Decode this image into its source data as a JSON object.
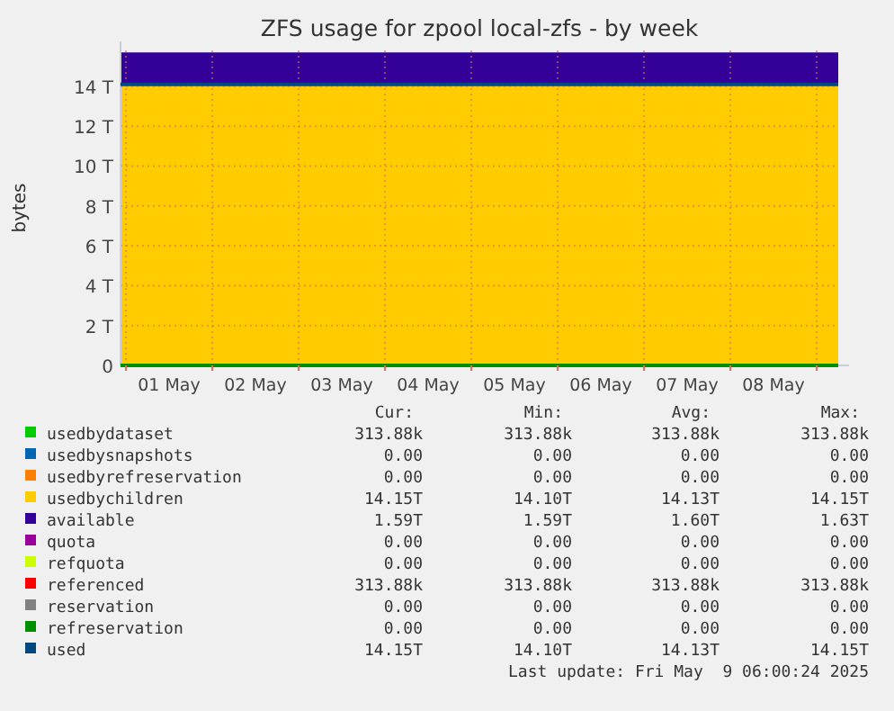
{
  "chart_data": {
    "type": "area",
    "title": "ZFS usage for zpool local-zfs - by week",
    "ylabel": "bytes",
    "stacked": true,
    "grid": true,
    "legend": "bottom",
    "x": [
      "2025-04-30T22:30",
      "2025-05-04T12:00",
      "2025-05-09T06:00"
    ],
    "xlim": [
      "2025-04-30T22:30",
      "2025-05-09T06:00"
    ],
    "xticks": [
      {
        "value": "2025-05-01T00:00",
        "label": null
      },
      {
        "value": "2025-05-01T12:00",
        "label": "01 May"
      },
      {
        "value": "2025-05-02T00:00",
        "label": null
      },
      {
        "value": "2025-05-02T12:00",
        "label": "02 May"
      },
      {
        "value": "2025-05-03T00:00",
        "label": null
      },
      {
        "value": "2025-05-03T12:00",
        "label": "03 May"
      },
      {
        "value": "2025-05-04T00:00",
        "label": null
      },
      {
        "value": "2025-05-04T12:00",
        "label": "04 May"
      },
      {
        "value": "2025-05-05T00:00",
        "label": null
      },
      {
        "value": "2025-05-05T12:00",
        "label": "05 May"
      },
      {
        "value": "2025-05-06T00:00",
        "label": null
      },
      {
        "value": "2025-05-06T12:00",
        "label": "06 May"
      },
      {
        "value": "2025-05-07T00:00",
        "label": null
      },
      {
        "value": "2025-05-07T12:00",
        "label": "07 May"
      },
      {
        "value": "2025-05-08T00:00",
        "label": null
      },
      {
        "value": "2025-05-08T12:00",
        "label": "08 May"
      },
      {
        "value": "2025-05-09T00:00",
        "label": null
      }
    ],
    "ylim": [
      0,
      15.8
    ],
    "yticks": [
      0,
      {
        "value": 2,
        "label": "2 T"
      },
      {
        "value": 4,
        "label": "4 T"
      },
      {
        "value": 6,
        "label": "6 T"
      },
      {
        "value": 8,
        "label": "8 T"
      },
      {
        "value": 10,
        "label": "10 T"
      },
      {
        "value": 12,
        "label": "12 T"
      },
      {
        "value": 14,
        "label": "14 T"
      }
    ],
    "series": [
      {
        "name": "usedbydataset",
        "color": "#00cc00",
        "values": [
          null,
          null,
          null
        ]
      },
      {
        "name": "usedbysnapshots",
        "color": "#0066b3",
        "values": [
          null,
          null,
          null
        ]
      },
      {
        "name": "usedbyrefreservation",
        "color": "#ff8000",
        "values": [
          null,
          null,
          null
        ]
      },
      {
        "name": "usedbychildren",
        "color": "#ffcc00",
        "values": [
          14.1,
          14.1,
          14.1
        ]
      },
      {
        "name": "available",
        "color": "#330099",
        "values": [
          1.6,
          1.6,
          1.6
        ]
      },
      {
        "name": "quota",
        "type": "line",
        "color": "#990099",
        "values": [
          null,
          null,
          null
        ]
      },
      {
        "name": "refquota",
        "type": "line",
        "color": "#ccff00",
        "values": [
          null,
          null,
          null
        ]
      },
      {
        "name": "referenced",
        "type": "line",
        "color": "#ff0000",
        "values": [
          null,
          null,
          null
        ]
      },
      {
        "name": "reservation",
        "type": "line",
        "color": "#808080",
        "values": [
          null,
          null,
          null
        ]
      },
      {
        "name": "refreservation",
        "type": "line",
        "color": "#008f00",
        "values": [
          0,
          0,
          0
        ]
      },
      {
        "name": "used",
        "type": "line",
        "color": "#00487d",
        "values": [
          14.1,
          14.1,
          14.1
        ]
      }
    ],
    "annotations": [
      "Cur:",
      "Min:",
      "Avg:",
      "Max:",
      "313.88k",
      "313.88k",
      "313.88k",
      "313.88k",
      "0.00",
      "0.00",
      "0.00",
      "0.00",
      "0.00",
      "0.00",
      "0.00",
      "0.00",
      "14.15T",
      "14.10T",
      "14.13T",
      "14.15T",
      "1.59T",
      "1.59T",
      "1.60T",
      "1.63T",
      "0.00",
      "0.00",
      "0.00",
      "0.00",
      "0.00",
      "0.00",
      "0.00",
      "0.00",
      "313.88k",
      "313.88k",
      "313.88k",
      "313.88k",
      "0.00",
      "0.00",
      "0.00",
      "0.00",
      "0.00",
      "0.00",
      "0.00",
      "0.00",
      "14.15T",
      "14.10T",
      "14.13T",
      "14.15T",
      "Last update: Fri May  9 06:00:24 2025"
    ]
  }
}
